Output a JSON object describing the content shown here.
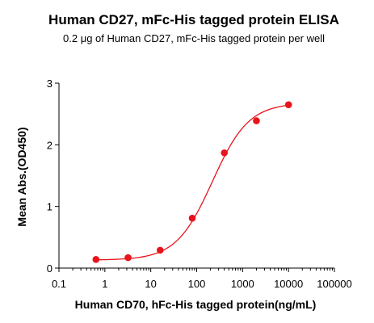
{
  "chart_data": {
    "type": "scatter",
    "title": "Human CD27, mFc-His tagged protein ELISA",
    "subtitle": "0.2 μg of Human CD27, mFc-His tagged protein per well",
    "xlabel": "Human CD70, hFc-His tagged protein(ng/mL)",
    "ylabel": "Mean Abs.(OD450)",
    "x_scale": "log",
    "xlim": [
      0.1,
      100000
    ],
    "ylim": [
      0,
      3
    ],
    "x_tick_labels": [
      "0.1",
      "1",
      "10",
      "100",
      "1000",
      "10000",
      "100000"
    ],
    "y_tick_labels": [
      "0",
      "1",
      "2",
      "3"
    ],
    "grid": false,
    "legend": "none",
    "fit": "four-parameter logistic curve",
    "series": [
      {
        "x": [
          0.64,
          3.2,
          16,
          80,
          400,
          2000,
          10000
        ],
        "y": [
          0.14,
          0.17,
          0.29,
          0.81,
          1.87,
          2.39,
          2.65
        ]
      }
    ],
    "colors": {
      "points": "#e8141c",
      "curve": "#e8141c",
      "axes": "#000000"
    }
  }
}
